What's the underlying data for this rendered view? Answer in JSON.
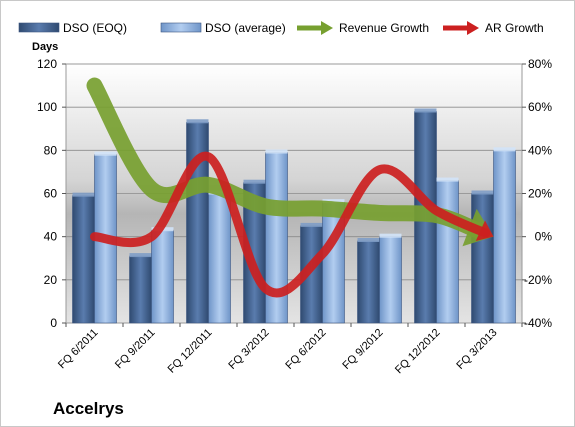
{
  "chart_data": {
    "type": "bar",
    "company": "Accelrys",
    "categories": [
      "FQ 6/2011",
      "FQ 9/2011",
      "FQ 12/2011",
      "FQ 3/2012",
      "FQ 6/2012",
      "FQ 9/2012",
      "FQ 12/2012",
      "FQ 3/2013"
    ],
    "ylabel": "Days",
    "ylim": [
      0,
      120
    ],
    "y_ticks": [
      0,
      20,
      40,
      60,
      80,
      100,
      120
    ],
    "y2lim": [
      -40,
      80
    ],
    "y2_ticks": [
      "-40%",
      "-20%",
      "0%",
      "20%",
      "40%",
      "60%",
      "80%"
    ],
    "y2_tick_values": [
      -40,
      -20,
      0,
      20,
      40,
      60,
      80
    ],
    "legend_position": "top",
    "series": [
      {
        "name": "DSO (EOQ)",
        "kind": "bar",
        "axis": "left",
        "color": "#4a6a99",
        "values": [
          59,
          31,
          93,
          65,
          45,
          38,
          98,
          60
        ]
      },
      {
        "name": "DSO (average)",
        "kind": "bar",
        "axis": "left",
        "color": "#8fb4e3",
        "values": [
          78,
          43,
          60,
          79,
          56,
          40,
          66,
          80
        ]
      },
      {
        "name": "Revenue Growth",
        "kind": "arrow-line",
        "axis": "right",
        "color": "#77a030",
        "values": [
          70,
          22,
          24,
          14,
          13,
          11,
          10,
          0
        ]
      },
      {
        "name": "AR Growth",
        "kind": "arrow-line",
        "axis": "right",
        "color": "#cc2020",
        "values": [
          0,
          0,
          37,
          -24,
          -8,
          31,
          12,
          0
        ]
      }
    ]
  }
}
